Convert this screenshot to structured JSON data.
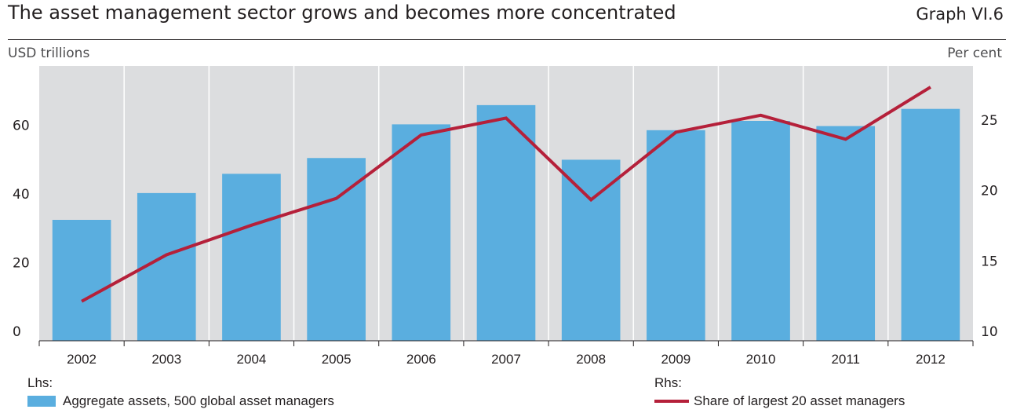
{
  "header": {
    "title": "The asset management sector grows and becomes more concentrated",
    "graph_id": "Graph VI.6"
  },
  "units": {
    "left": "USD trillions",
    "right": "Per cent"
  },
  "legend": {
    "lhs_label": "Lhs:",
    "rhs_label": "Rhs:",
    "bar_label": "Aggregate assets, 500 global asset managers",
    "line_label": "Share of largest 20 asset managers"
  },
  "colors": {
    "bar": "#5aaedf",
    "line": "#b5203a",
    "plot_bg": "#dcdddf",
    "grid": "#ffffff"
  },
  "chart_data": {
    "type": "bar",
    "categories": [
      "2002",
      "2003",
      "2004",
      "2005",
      "2006",
      "2007",
      "2008",
      "2009",
      "2010",
      "2011",
      "2012"
    ],
    "series": [
      {
        "name": "Aggregate assets, 500 global asset managers",
        "type": "bar",
        "axis": "left",
        "values": [
          35.2,
          43.0,
          48.6,
          53.2,
          63.0,
          68.6,
          52.7,
          61.3,
          64.0,
          62.5,
          67.5
        ]
      },
      {
        "name": "Share of largest 20 asset managers",
        "type": "line",
        "axis": "right",
        "values": [
          12.8,
          16.1,
          18.2,
          20.1,
          24.6,
          25.8,
          20.0,
          24.8,
          26.0,
          24.3,
          28.0
        ]
      }
    ],
    "y_left": {
      "label": "USD trillions",
      "ylim": [
        0,
        80
      ],
      "ticks": [
        0,
        20,
        40,
        60
      ]
    },
    "y_right": {
      "label": "Per cent",
      "ylim": [
        10,
        29.5
      ],
      "ticks": [
        10,
        15,
        20,
        25
      ]
    },
    "grid": "vertical",
    "legend_position": "bottom"
  }
}
